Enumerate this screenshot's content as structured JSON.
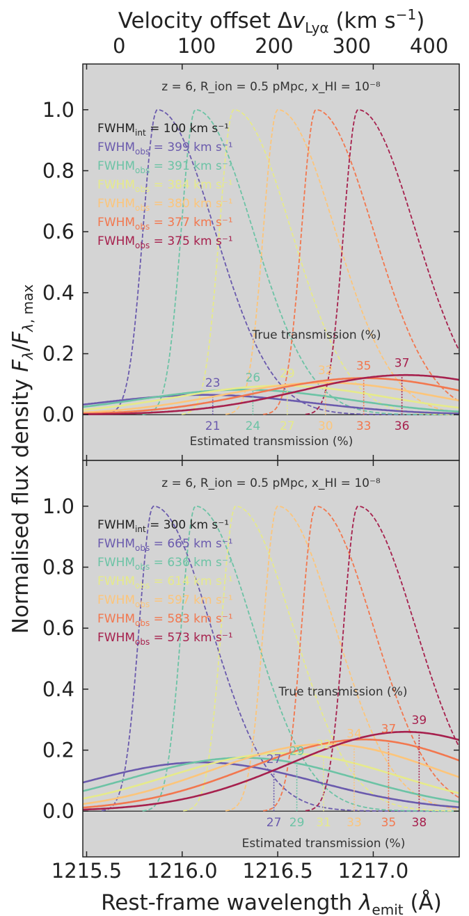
{
  "chart_data": {
    "type": "line",
    "x_label": "Rest-frame wavelength λ_emit (Å)",
    "y_label": "Normalised flux density F_λ/F_λ, max",
    "top_axis_label": "Velocity offset Δv_Lyα (km s⁻¹)",
    "x_ticks": [
      "1215.5",
      "1216.0",
      "1216.5",
      "1217.0"
    ],
    "top_ticks": [
      "0",
      "100",
      "200",
      "300",
      "400"
    ],
    "y_ticks": [
      "0.0",
      "0.2",
      "0.4",
      "0.6",
      "0.8",
      "1.0"
    ],
    "xlim": [
      1215.48,
      1217.45
    ],
    "ylim": [
      -0.15,
      1.15
    ],
    "grid": false,
    "legend_placement": "upper-left",
    "true_label": "True transmission (%)",
    "est_label": "Estimated transmission (%)",
    "colors": [
      "#6a5aad",
      "#6cc3a5",
      "#e6ea8a",
      "#fcc57a",
      "#f2774e",
      "#a6204d"
    ],
    "panels": [
      {
        "title": "z = 6, R_ion = 0.5 pMpc, x_HI = 10⁻⁸",
        "fwhm_int": "100",
        "fwhm_obs": [
          "399",
          "391",
          "384",
          "380",
          "377",
          "375"
        ],
        "peak_lambda": [
          1215.87,
          1216.07,
          1216.27,
          1216.5,
          1216.7,
          1216.92
        ],
        "true_transmission": [
          "23",
          "26",
          "29",
          "32",
          "35",
          "37"
        ],
        "estimated_transmission": [
          "21",
          "24",
          "27",
          "30",
          "33",
          "36"
        ],
        "est_lambda": [
          1216.16,
          1216.37,
          1216.55,
          1216.75,
          1216.95,
          1217.15
        ],
        "broad_peak": [
          0.065,
          0.082,
          0.095,
          0.105,
          0.12,
          0.13
        ]
      },
      {
        "title": "z = 6, R_ion = 0.5 pMpc, x_HI = 10⁻⁸",
        "fwhm_int": "300",
        "fwhm_obs": [
          "665",
          "636",
          "614",
          "597",
          "583",
          "573"
        ],
        "peak_lambda": [
          1215.85,
          1216.07,
          1216.28,
          1216.5,
          1216.7,
          1216.92
        ],
        "true_transmission": [
          "27",
          "29",
          "32",
          "34",
          "37",
          "39"
        ],
        "estimated_transmission": [
          "27",
          "29",
          "31",
          "33",
          "35",
          "38"
        ],
        "est_lambda": [
          1216.48,
          1216.6,
          1216.74,
          1216.9,
          1217.08,
          1217.24
        ],
        "broad_peak": [
          0.16,
          0.175,
          0.19,
          0.22,
          0.235,
          0.26
        ]
      }
    ]
  }
}
